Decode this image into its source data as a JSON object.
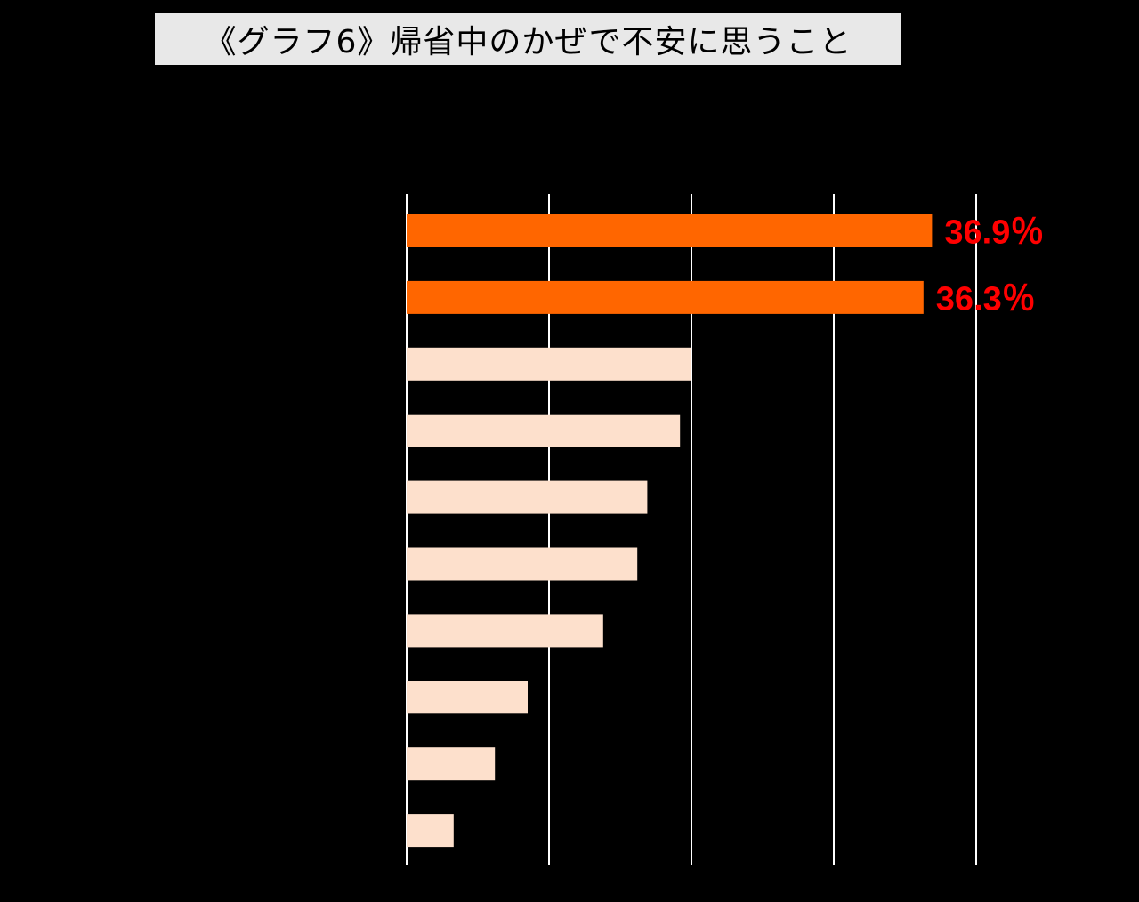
{
  "title": "《グラフ6》帰省中のかぜで不安に思うこと",
  "colors": {
    "background": "#000000",
    "title_bg": "#e8e8e8",
    "highlight_bar": "#ff6600",
    "normal_bar": "#fde0cc",
    "highlight_label": "#ff0000",
    "gridline": "#ffffff"
  },
  "chart_data": {
    "type": "bar",
    "orientation": "horizontal",
    "title": "《グラフ6》帰省中のかぜで不安に思うこと",
    "unit": "%",
    "xlim": [
      0,
      40
    ],
    "gridlines_at": [
      0,
      10,
      20,
      30,
      40
    ],
    "series": [
      {
        "values": [
          36.9,
          36.3,
          20.0,
          19.2,
          16.9,
          16.2,
          13.8,
          8.5,
          6.2,
          3.3
        ],
        "highlight": [
          true,
          true,
          false,
          false,
          false,
          false,
          false,
          false,
          false,
          false
        ],
        "labels": [
          "36.9％",
          "36.3％",
          "",
          "",
          "",
          "",
          "",
          "",
          "",
          ""
        ]
      }
    ]
  }
}
